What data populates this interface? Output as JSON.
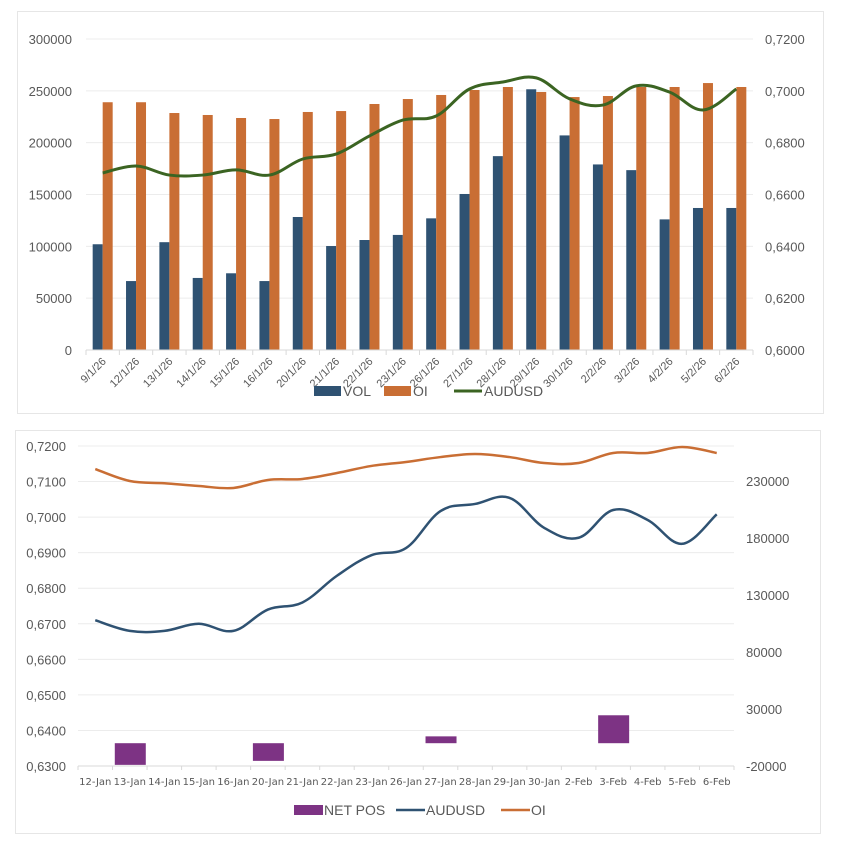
{
  "colors": {
    "vol": "#2f5272",
    "oi": "#c96e34",
    "audusd_top": "#3b6422",
    "audusd_bottom": "#2f5272",
    "net_pos": "#7d3384",
    "grid": "#ececec",
    "text": "#595959"
  },
  "chart_data": [
    {
      "type": "bar",
      "title": "",
      "categories": [
        "9/1/26",
        "12/1/26",
        "13/1/26",
        "14/1/26",
        "15/1/26",
        "16/1/26",
        "20/1/26",
        "21/1/26",
        "22/1/26",
        "23/1/26",
        "26/1/26",
        "27/1/26",
        "28/1/26",
        "29/1/26",
        "30/1/26",
        "2/2/26",
        "3/2/26",
        "4/2/26",
        "5/2/26",
        "6/2/26"
      ],
      "series": [
        {
          "name": "VOL",
          "type": "bar",
          "axis": "left",
          "values": [
            102000,
            66500,
            104000,
            69500,
            74000,
            66500,
            128300,
            100300,
            106100,
            111000,
            127000,
            150500,
            187000,
            251500,
            207000,
            179000,
            173500,
            126000,
            137000,
            137000
          ]
        },
        {
          "name": "OI",
          "type": "bar",
          "axis": "left",
          "values": [
            239000,
            239000,
            228600,
            226700,
            223800,
            222800,
            229600,
            230500,
            237300,
            242100,
            246000,
            250800,
            253700,
            248900,
            244000,
            245000,
            253700,
            253700,
            257500,
            253700
          ]
        },
        {
          "name": "AUDUSD",
          "type": "line",
          "axis": "right",
          "values": [
            0.6683,
            0.671,
            0.6675,
            0.6675,
            0.6695,
            0.6675,
            0.6737,
            0.6756,
            0.6826,
            0.6887,
            0.6903,
            0.7007,
            0.7034,
            0.705,
            0.6969,
            0.6945,
            0.7019,
            0.6995,
            0.6926,
            0.7007
          ]
        }
      ],
      "y_left": {
        "min": 0,
        "max": 300000,
        "ticks": [
          0,
          50000,
          100000,
          150000,
          200000,
          250000,
          300000
        ],
        "tick_labels": [
          "0",
          "50000",
          "100000",
          "150000",
          "200000",
          "250000",
          "300000"
        ]
      },
      "y_right": {
        "min": 0.6,
        "max": 0.72,
        "ticks": [
          0.6,
          0.62,
          0.64,
          0.66,
          0.68,
          0.7,
          0.72
        ],
        "tick_labels": [
          "0,6000",
          "0,6200",
          "0,6400",
          "0,6600",
          "0,6800",
          "0,7000",
          "0,7200"
        ]
      },
      "xlabel": "",
      "ylabel": "",
      "grid": true,
      "legend": {
        "position": "bottom",
        "entries": [
          "VOL",
          "OI",
          "AUDUSD"
        ]
      }
    },
    {
      "type": "line",
      "title": "",
      "categories": [
        "12-Jan",
        "13-Jan",
        "14-Jan",
        "15-Jan",
        "16-Jan",
        "20-Jan",
        "21-Jan",
        "22-Jan",
        "23-Jan",
        "26-Jan",
        "27-Jan",
        "28-Jan",
        "29-Jan",
        "30-Jan",
        "2-Feb",
        "3-Feb",
        "4-Feb",
        "5-Feb",
        "6-Feb"
      ],
      "series": [
        {
          "name": "NET POS",
          "type": "bar",
          "axis": "right",
          "values": [
            null,
            -19000,
            null,
            null,
            null,
            -15500,
            null,
            null,
            null,
            null,
            6000,
            null,
            null,
            null,
            null,
            24500,
            null,
            null,
            null
          ]
        },
        {
          "name": "AUDUSD",
          "type": "line",
          "axis": "left",
          "values": [
            0.671,
            0.668,
            0.668,
            0.67,
            0.668,
            0.674,
            0.676,
            0.6835,
            0.6893,
            0.6913,
            0.7017,
            0.7037,
            0.7054,
            0.697,
            0.6942,
            0.702,
            0.6992,
            0.6925,
            0.7008
          ]
        },
        {
          "name": "OI",
          "type": "line",
          "axis": "right",
          "values": [
            240500,
            230000,
            228000,
            225600,
            223900,
            230900,
            231800,
            237000,
            243200,
            246700,
            251000,
            253700,
            251000,
            245800,
            245800,
            254600,
            254600,
            259800,
            254600
          ]
        }
      ],
      "y_left": {
        "min": 0.63,
        "max": 0.72,
        "ticks": [
          0.63,
          0.64,
          0.65,
          0.66,
          0.67,
          0.68,
          0.69,
          0.7,
          0.71,
          0.72
        ],
        "tick_labels": [
          "0,6300",
          "0,6400",
          "0,6500",
          "0,6600",
          "0,6700",
          "0,6800",
          "0,6900",
          "0,7000",
          "0,7100",
          "0,7200"
        ]
      },
      "y_right": {
        "min": -20000,
        "max": 260000,
        "ticks": [
          -20000,
          30000,
          80000,
          130000,
          180000,
          230000
        ],
        "tick_labels": [
          "-20000",
          "30000",
          "80000",
          "130000",
          "180000",
          "230000"
        ]
      },
      "xlabel": "",
      "ylabel": "",
      "grid": true,
      "legend": {
        "position": "bottom",
        "entries": [
          "NET POS",
          "AUDUSD",
          "OI"
        ]
      }
    }
  ]
}
